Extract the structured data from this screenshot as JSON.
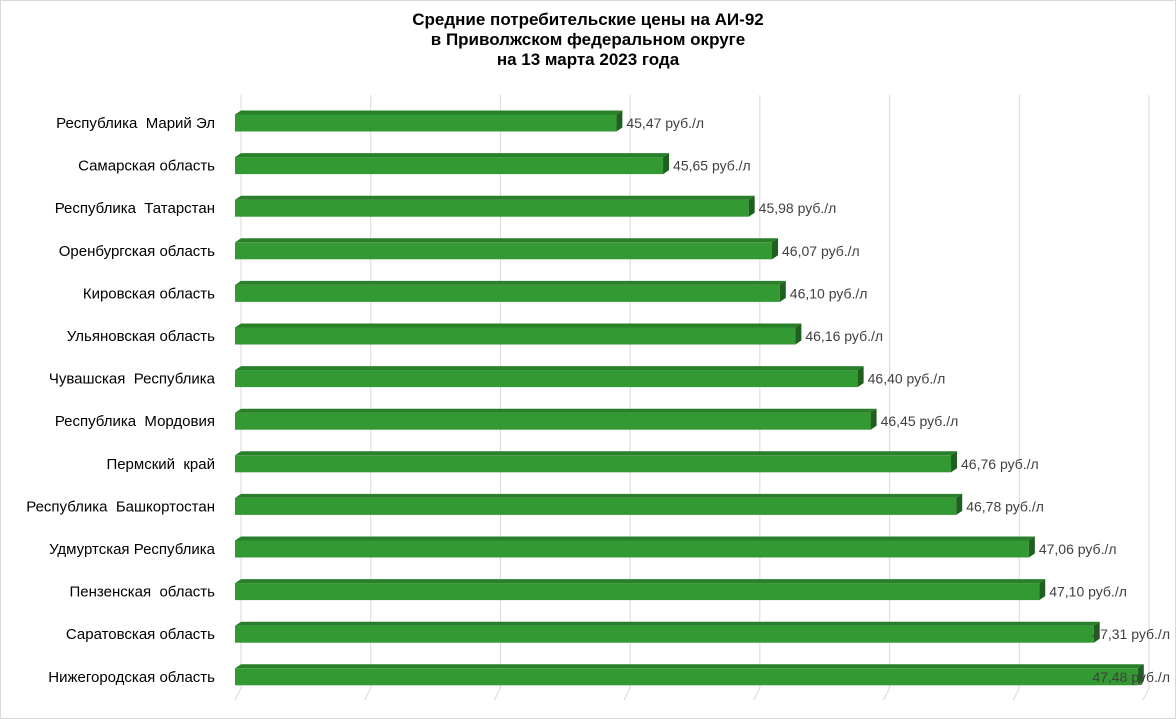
{
  "chart_data": {
    "type": "bar",
    "orientation": "horizontal",
    "style": "3d",
    "title_lines": [
      "Средние потребительские цены на АИ-92",
      "в Приволжском федеральном округе",
      "на 13 марта 2023 года"
    ],
    "categories": [
      "Республика  Марий Эл",
      "Самарская область",
      "Республика  Татарстан",
      "Оренбургская область",
      "Кировская область",
      "Ульяновская область",
      "Чувашская  Республика",
      "Республика  Мордовия",
      "Пермский  край",
      "Республика  Башкортостан",
      "Удмуртская Республика",
      "Пензенская  область",
      "Саратовская область",
      "Нижегородская область"
    ],
    "values": [
      45.47,
      45.65,
      45.98,
      46.07,
      46.1,
      46.16,
      46.4,
      46.45,
      46.76,
      46.78,
      47.06,
      47.1,
      47.31,
      47.48
    ],
    "data_labels": [
      "45,47 руб./л",
      "45,65 руб./л",
      "45,98 руб./л",
      "46,07 руб./л",
      "46,10 руб./л",
      "46,16 руб./л",
      "46,40 руб./л",
      "46,45 руб./л",
      "46,76 руб./л",
      "46,78 руб./л",
      "47,06 руб./л",
      "47,10 руб./л",
      "47,31 руб./л",
      "47,48 руб./л"
    ],
    "xlim": [
      44.0,
      47.5
    ],
    "x_tick_labels_visible": false,
    "grid": true,
    "legend": "none",
    "colors": {
      "bar_front": "#339933",
      "bar_top": "#2a7f2a",
      "bar_side": "#1f5f1f",
      "grid": "#d9d9d9"
    }
  }
}
